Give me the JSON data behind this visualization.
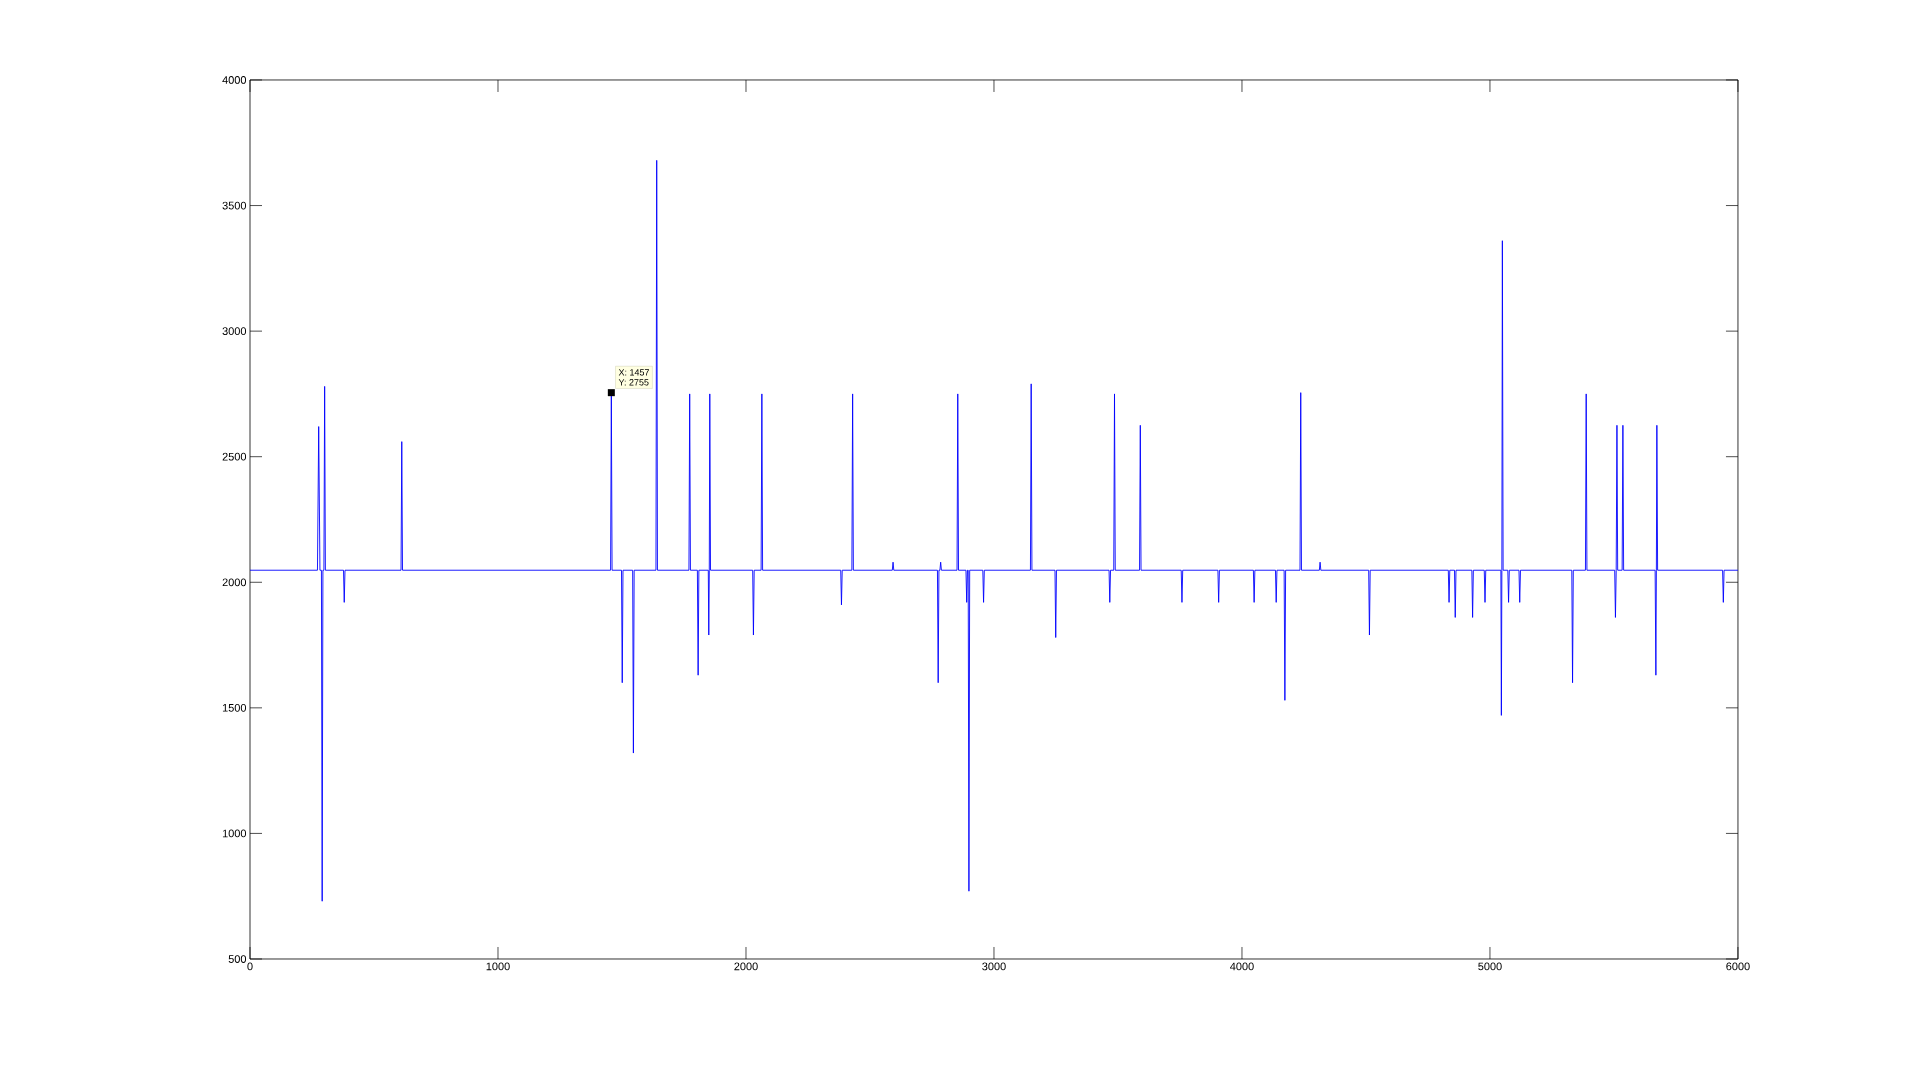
{
  "chart_data": {
    "type": "line",
    "xlim": [
      0,
      6000
    ],
    "ylim": [
      500,
      4000
    ],
    "xticks": [
      0,
      1000,
      2000,
      3000,
      4000,
      5000,
      6000
    ],
    "yticks": [
      500,
      1000,
      1500,
      2000,
      2500,
      3000,
      3500,
      4000
    ],
    "grid": false,
    "marker": "none",
    "line_style": "solid",
    "annotations": [
      {
        "text": "X: 1457",
        "x": 1457,
        "y": 2755
      },
      "Y: 2755"
    ],
    "series": [
      {
        "color": "#0000ff",
        "x": [
          0,
          272,
          277,
          282,
          288,
          291,
          294,
          298,
          301,
          304,
          377,
          380,
          383,
          609,
          612,
          615,
          1454,
          1457,
          1460,
          1498,
          1501,
          1504,
          1543,
          1546,
          1549,
          1637,
          1640,
          1643,
          1770,
          1773,
          1776,
          1804,
          1807,
          1810,
          1848,
          1850,
          1852,
          1854,
          1857,
          2027,
          2030,
          2033,
          2061,
          2064,
          2067,
          2382,
          2385,
          2388,
          2427,
          2430,
          2433,
          2590,
          2593,
          2596,
          2772,
          2775,
          2778,
          2782,
          2785,
          2788,
          2851,
          2854,
          2857,
          2887,
          2890,
          2893,
          2896,
          2899,
          2902,
          2955,
          2958,
          2961,
          3147,
          3150,
          3153,
          3246,
          3249,
          3252,
          3464,
          3467,
          3470,
          3483,
          3486,
          3489,
          3587,
          3590,
          3593,
          3755,
          3758,
          3761,
          3903,
          3906,
          3909,
          4046,
          4049,
          4052,
          4135,
          4138,
          4141,
          4170,
          4173,
          4176,
          4234,
          4237,
          4240,
          4312,
          4315,
          4318,
          4511,
          4514,
          4517,
          4832,
          4835,
          4838,
          4857,
          4860,
          4863,
          4927,
          4930,
          4933,
          4977,
          4980,
          4983,
          5044,
          5046,
          5048,
          5050,
          5053,
          5072,
          5075,
          5078,
          5117,
          5120,
          5123,
          5330,
          5333,
          5336,
          5385,
          5388,
          5391,
          5503,
          5506,
          5509,
          5512,
          5515,
          5533,
          5536,
          5539,
          5666,
          5669,
          5671,
          5673,
          5676,
          5938,
          5941,
          5944,
          6000
        ],
        "values": [
          2048,
          2048,
          2620,
          2048,
          2048,
          730,
          2048,
          2048,
          2780,
          2048,
          2048,
          1920,
          2048,
          2048,
          2560,
          2048,
          2048,
          2755,
          2048,
          2048,
          1600,
          2048,
          2048,
          1320,
          2048,
          2048,
          3680,
          2048,
          2048,
          2750,
          2048,
          2048,
          1630,
          2048,
          2048,
          1790,
          2048,
          2750,
          2048,
          2048,
          1790,
          2048,
          2048,
          2750,
          2048,
          2048,
          1910,
          2048,
          2048,
          2750,
          2048,
          2048,
          2080,
          2048,
          2048,
          1600,
          2048,
          2048,
          2080,
          2048,
          2048,
          2750,
          2048,
          2048,
          1920,
          2048,
          2048,
          770,
          2048,
          2048,
          1920,
          2048,
          2048,
          2790,
          2048,
          2048,
          1780,
          2048,
          2048,
          1920,
          2048,
          2048,
          2750,
          2048,
          2048,
          2625,
          2048,
          2048,
          1920,
          2048,
          2048,
          1920,
          2048,
          2048,
          1920,
          2048,
          2048,
          1920,
          2048,
          2048,
          1530,
          2048,
          2048,
          2755,
          2048,
          2048,
          2080,
          2048,
          2048,
          1790,
          2048,
          2048,
          1920,
          2048,
          2048,
          1860,
          2048,
          2048,
          1860,
          2048,
          2048,
          1920,
          2048,
          2048,
          1470,
          2048,
          3360,
          2048,
          2048,
          1920,
          2048,
          2048,
          1920,
          2048,
          2048,
          1600,
          2048,
          2048,
          2750,
          2048,
          2048,
          1860,
          2048,
          2625,
          2048,
          2048,
          2625,
          2048,
          2048,
          1630,
          2048,
          2625,
          2048,
          2048,
          1920,
          2048,
          2048
        ]
      }
    ]
  }
}
